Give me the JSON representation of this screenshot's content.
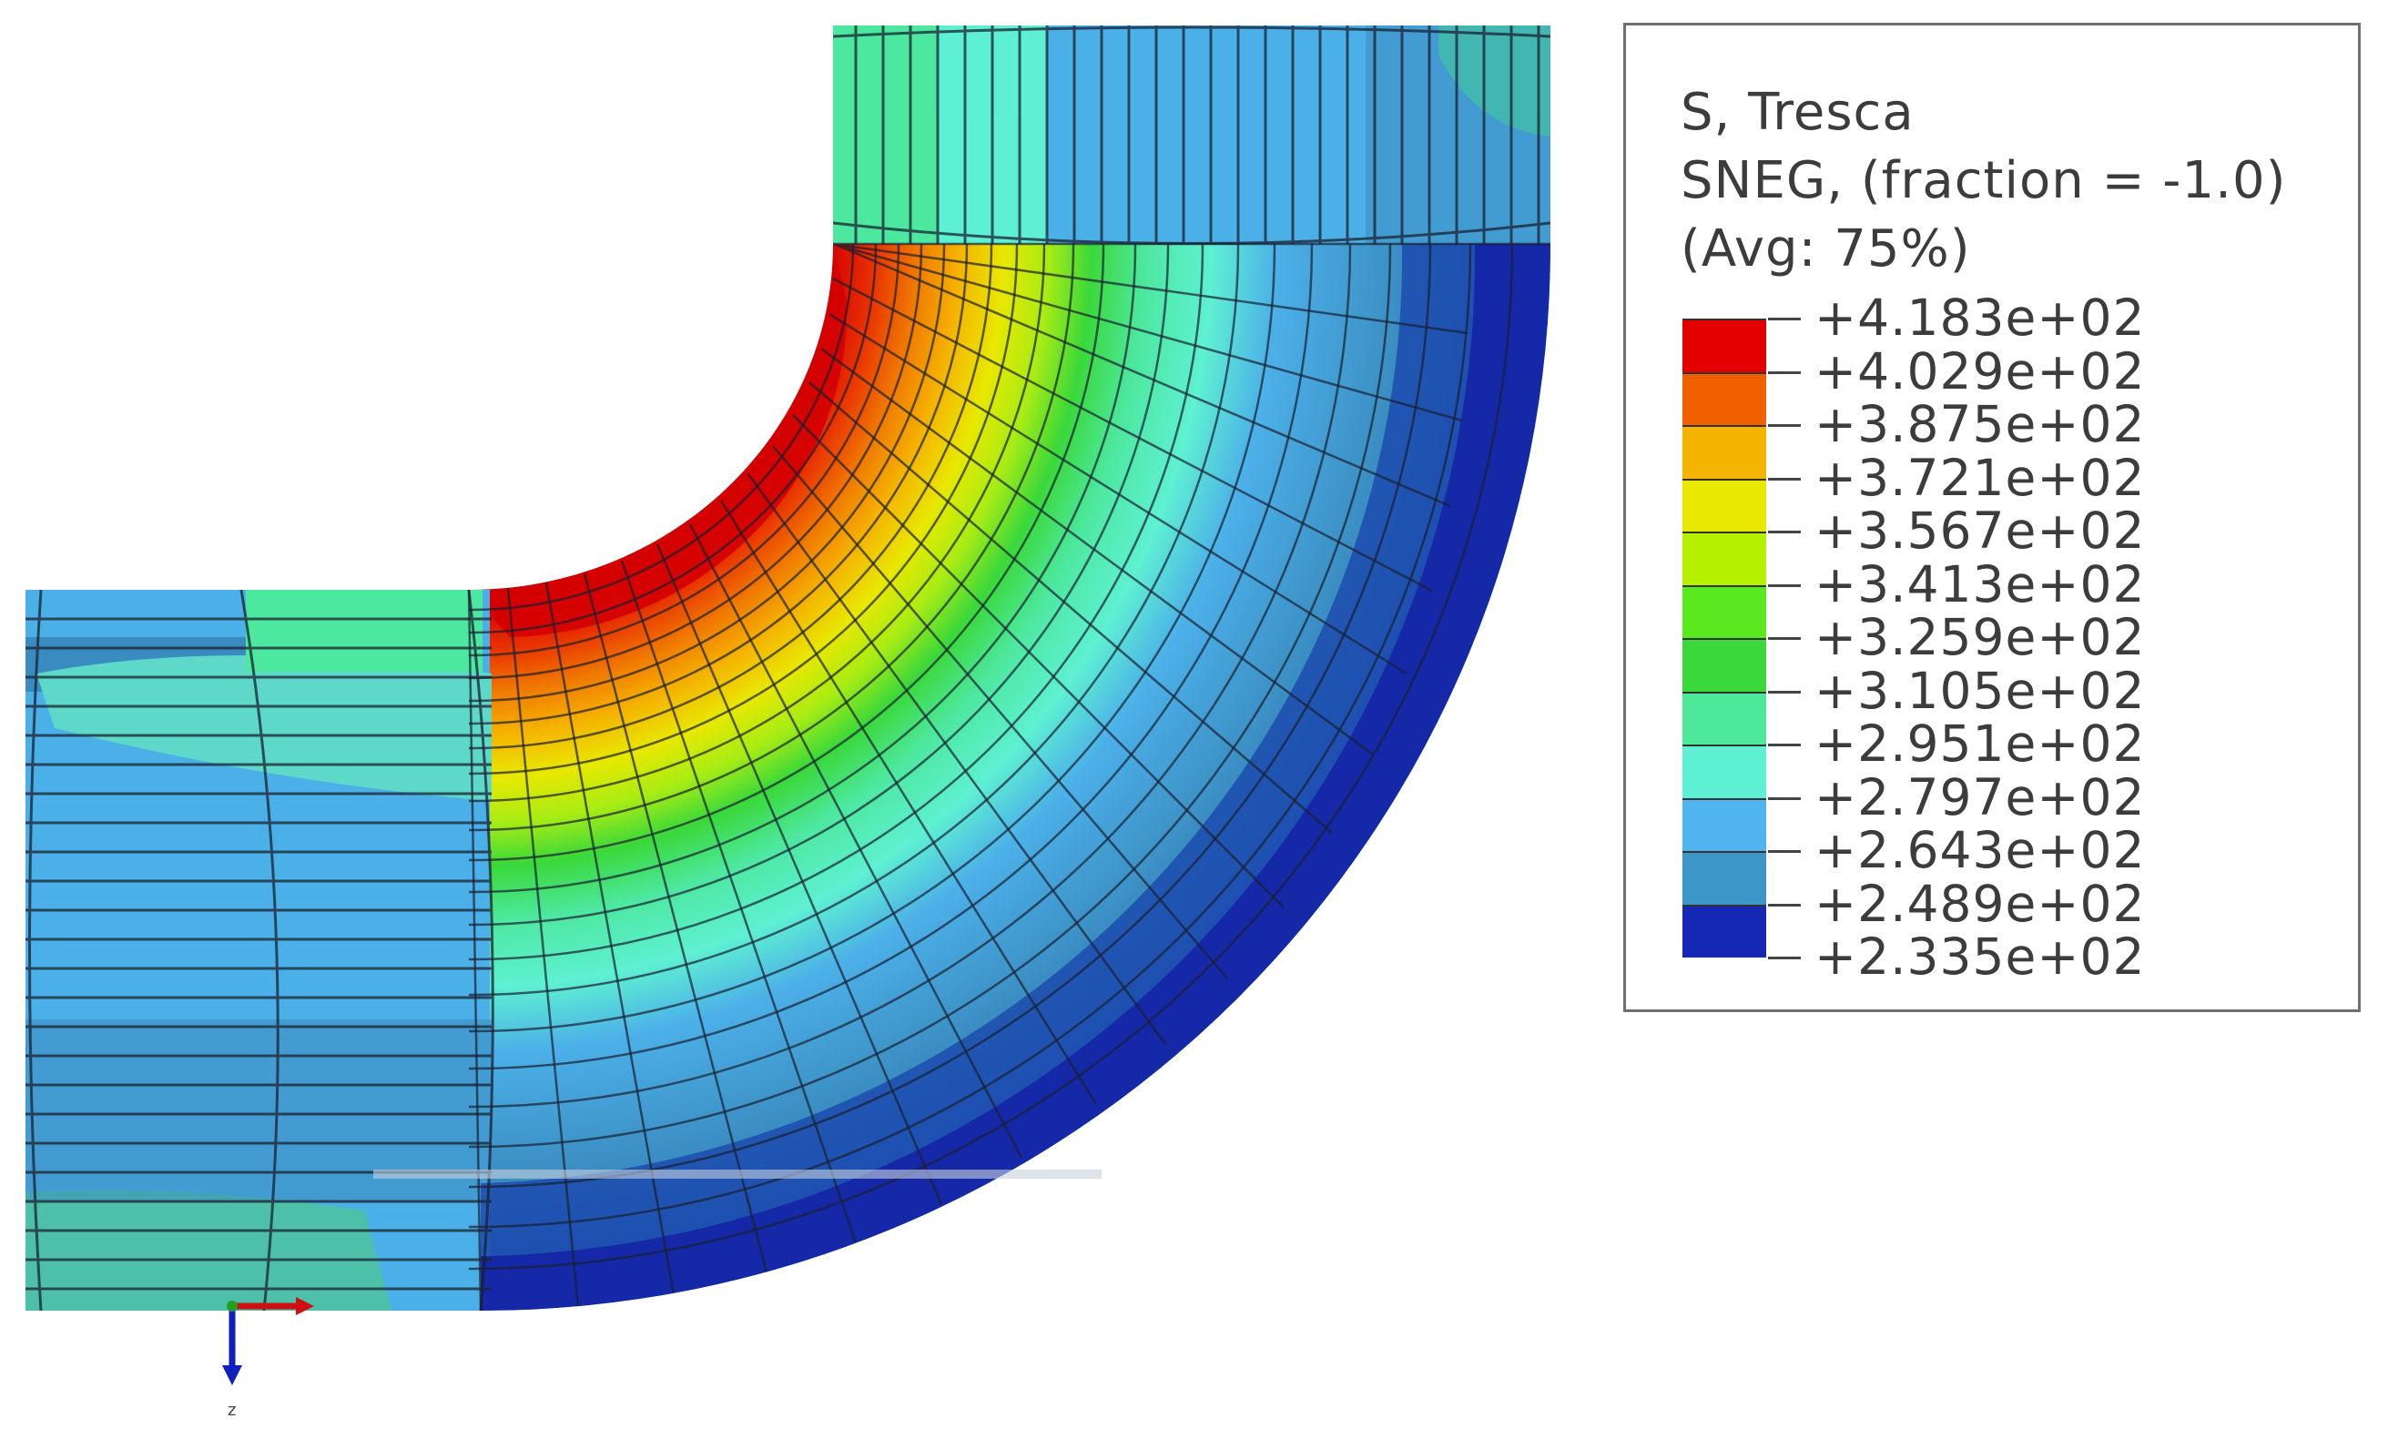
{
  "legend": {
    "title_line1": "S, Tresca",
    "title_line2": "SNEG, (fraction = -1.0)",
    "title_line3": "(Avg: 75%)",
    "values": [
      "+4.183e+02",
      "+4.029e+02",
      "+3.875e+02",
      "+3.721e+02",
      "+3.567e+02",
      "+3.413e+02",
      "+3.259e+02",
      "+3.105e+02",
      "+2.951e+02",
      "+2.797e+02",
      "+2.643e+02",
      "+2.489e+02",
      "+2.335e+02"
    ],
    "colors": [
      "#e50000",
      "#f06000",
      "#f5b400",
      "#e8e800",
      "#b4f000",
      "#5ae81e",
      "#3ad83a",
      "#4de89a",
      "#5ef0d2",
      "#50b4f0",
      "#3c96c8",
      "#1428b4"
    ]
  },
  "triad": {
    "x_label": "",
    "z_label": "z"
  },
  "contour_colors": {
    "red": "#d40000",
    "orange": "#f07800",
    "yellow": "#e8e800",
    "lime": "#a8ec14",
    "green": "#3ad83a",
    "mint": "#4de8a0",
    "cyan": "#5ef0d2",
    "sky": "#4cb0e8",
    "steel": "#3a8cc0",
    "navy": "#1428a8",
    "mesh": "#1a2030"
  }
}
